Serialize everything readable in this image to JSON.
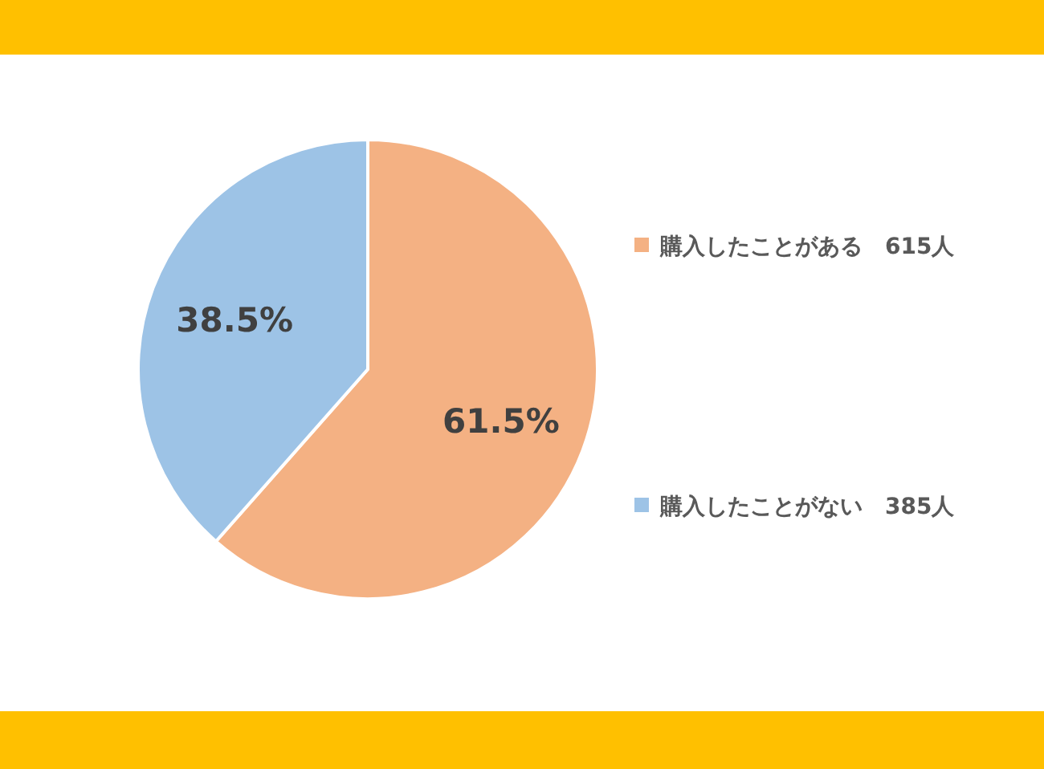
{
  "chart_data": {
    "type": "pie",
    "categories": [
      "購入したことがある　615人",
      "購入したことがない　385人"
    ],
    "values": [
      61.5,
      38.5
    ],
    "colors": [
      "#f4b183",
      "#9dc3e6"
    ],
    "value_labels": [
      "61.5%",
      "38.5%"
    ],
    "legend": "right"
  }
}
